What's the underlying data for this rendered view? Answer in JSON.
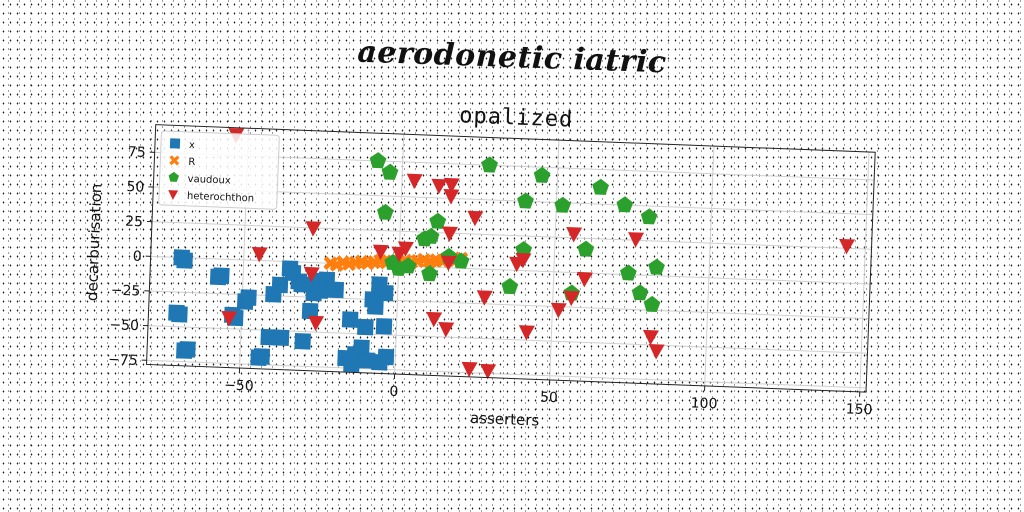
{
  "suptitle": "aerodonetic iatric",
  "chart_data": {
    "type": "scatter",
    "title": "opalized",
    "xlabel": "asserters",
    "ylabel": "decarburisation",
    "xlim": [
      -80,
      152
    ],
    "ylim": [
      -78,
      95
    ],
    "xticks": [
      -50,
      0,
      50,
      100,
      150
    ],
    "yticks": [
      -75,
      -50,
      -25,
      0,
      25,
      50,
      75
    ],
    "grid": true,
    "legend_position": "top-left",
    "series": [
      {
        "name": "x",
        "marker": "square",
        "color": "#1f77b4",
        "points": [
          [
            -70,
            0
          ],
          [
            -69,
            -2
          ],
          [
            -71,
            -40
          ],
          [
            -70,
            -41
          ],
          [
            -68,
            -67
          ],
          [
            -67,
            -66
          ],
          [
            -58,
            -13
          ],
          [
            -57,
            -12
          ],
          [
            -53,
            -40
          ],
          [
            -52,
            -42
          ],
          [
            -49,
            -30
          ],
          [
            -48,
            -27
          ],
          [
            -44,
            -70
          ],
          [
            -43,
            -69
          ],
          [
            -41,
            -55
          ],
          [
            -40,
            -24
          ],
          [
            -38,
            -17
          ],
          [
            -37,
            -55
          ],
          [
            -35,
            -5
          ],
          [
            -34,
            -8
          ],
          [
            -32,
            -14
          ],
          [
            -31,
            -16
          ],
          [
            -30,
            -57
          ],
          [
            -28,
            -35
          ],
          [
            -27,
            -22
          ],
          [
            -26,
            -13
          ],
          [
            -25,
            -20
          ],
          [
            -23,
            -12
          ],
          [
            -21,
            -19
          ],
          [
            -20,
            -19
          ],
          [
            -16,
            -68
          ],
          [
            -15,
            -40
          ],
          [
            -14,
            -72
          ],
          [
            -13,
            -65
          ],
          [
            -12,
            -69
          ],
          [
            -11,
            -60
          ],
          [
            -10,
            -45
          ],
          [
            -9,
            -69
          ],
          [
            -8,
            -25
          ],
          [
            -7,
            -30
          ],
          [
            -6,
            -14
          ],
          [
            -5,
            -70
          ],
          [
            -4,
            -20
          ],
          [
            -4,
            -44
          ],
          [
            -3,
            -66
          ]
        ]
      },
      {
        "name": "R",
        "marker": "x",
        "color": "#ff7f0e",
        "points": [
          [
            -22,
            0
          ],
          [
            -20,
            -1
          ],
          [
            -18,
            1
          ],
          [
            -16,
            0
          ],
          [
            -14,
            1
          ],
          [
            -12,
            2
          ],
          [
            -10,
            1
          ],
          [
            -8,
            2
          ],
          [
            -6,
            3
          ],
          [
            -4,
            2
          ],
          [
            -2,
            3
          ],
          [
            0,
            3
          ],
          [
            2,
            4
          ],
          [
            4,
            3
          ],
          [
            6,
            4
          ],
          [
            8,
            5
          ],
          [
            10,
            4
          ],
          [
            12,
            5
          ],
          [
            14,
            5
          ],
          [
            16,
            6
          ],
          [
            18,
            6
          ],
          [
            20,
            7
          ]
        ]
      },
      {
        "name": "vaudoux",
        "marker": "pentagon",
        "color": "#2ca02c",
        "points": [
          [
            -8,
            75
          ],
          [
            -4,
            67
          ],
          [
            -5,
            38
          ],
          [
            -2,
            2
          ],
          [
            0,
            -2
          ],
          [
            3,
            0
          ],
          [
            8,
            20
          ],
          [
            10,
            22
          ],
          [
            12,
            33
          ],
          [
            10,
            -5
          ],
          [
            16,
            8
          ],
          [
            20,
            5
          ],
          [
            28,
            75
          ],
          [
            36,
            -12
          ],
          [
            40,
            15
          ],
          [
            40,
            50
          ],
          [
            45,
            69
          ],
          [
            52,
            48
          ],
          [
            56,
            -15
          ],
          [
            60,
            17
          ],
          [
            64,
            62
          ],
          [
            72,
            50
          ],
          [
            74,
            1
          ],
          [
            78,
            -13
          ],
          [
            80,
            42
          ],
          [
            82,
            -21
          ],
          [
            83,
            6
          ]
        ]
      },
      {
        "name": "heterochthon",
        "marker": "triangle-down",
        "color": "#d62728",
        "points": [
          [
            -54,
            90
          ],
          [
            -54,
            -42
          ],
          [
            -45,
            5
          ],
          [
            -28,
            25
          ],
          [
            -28,
            -8
          ],
          [
            -26,
            -43
          ],
          [
            -6,
            10
          ],
          [
            0,
            9
          ],
          [
            2,
            13
          ],
          [
            4,
            62
          ],
          [
            12,
            59
          ],
          [
            16,
            60
          ],
          [
            16,
            52
          ],
          [
            16,
            25
          ],
          [
            12,
            -37
          ],
          [
            16,
            4
          ],
          [
            16,
            -44
          ],
          [
            24,
            -72
          ],
          [
            24,
            37
          ],
          [
            30,
            -73
          ],
          [
            28,
            -20
          ],
          [
            38,
            5
          ],
          [
            40,
            8
          ],
          [
            42,
            -44
          ],
          [
            52,
            -27
          ],
          [
            56,
            -18
          ],
          [
            56,
            28
          ],
          [
            60,
            -4
          ],
          [
            76,
            26
          ],
          [
            82,
            -44
          ],
          [
            84,
            -54
          ],
          [
            144,
            27
          ]
        ]
      }
    ]
  }
}
